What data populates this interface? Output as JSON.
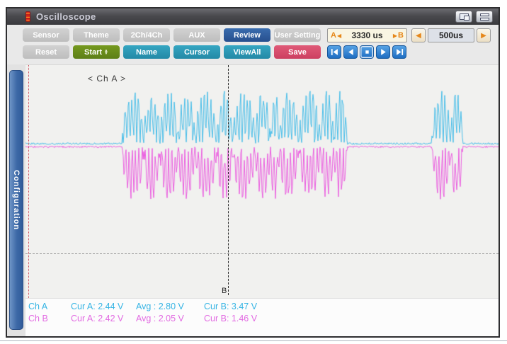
{
  "titlebar": {
    "title": "Oscilloscope"
  },
  "toolbar": {
    "row1": [
      {
        "label": "Sensor"
      },
      {
        "label": "Theme"
      },
      {
        "label": "2Ch/4Ch"
      },
      {
        "label": "AUX"
      },
      {
        "label": "Review"
      },
      {
        "label": "User Setting"
      }
    ],
    "row2": [
      {
        "label": "Reset"
      },
      {
        "label": "Start"
      },
      {
        "label": "Name"
      },
      {
        "label": "Cursor"
      },
      {
        "label": "ViewAll"
      },
      {
        "label": "Save"
      }
    ],
    "ab_panel": {
      "a_label": "A",
      "value": "3330 us",
      "b_label": "B"
    },
    "timebase": {
      "value": "500us"
    },
    "icons": {
      "arrow_left": "◀",
      "arrow_right": "▶",
      "spinner_up": "▲",
      "spinner_down": "▼"
    },
    "playback_icons": [
      "skip-start",
      "step-back",
      "stop",
      "play",
      "skip-end"
    ]
  },
  "sidebar": {
    "tab_label": "Configuration"
  },
  "plot": {
    "channel_label": "< Ch A >",
    "cursor_label": "B"
  },
  "status": {
    "rows": [
      {
        "ch": "Ch A",
        "cur_a": "Cur A: 2.44 V",
        "avg": "Avg : 2.80 V",
        "cur_b": "Cur B: 3.47 V",
        "color": "#35b4e4"
      },
      {
        "ch": "Ch B",
        "cur_a": "Cur A: 2.42 V",
        "avg": "Avg : 2.05 V",
        "cur_b": "Cur B: 1.46 V",
        "color": "#e26ae2"
      }
    ]
  },
  "chart_data": {
    "type": "line",
    "title": "Oscilloscope capture: two-channel mirrored AM burst waveform",
    "x_window_label": "3330 us",
    "timebase_per_div": "500us",
    "legend_position": "none",
    "grid": false,
    "series": [
      {
        "name": "Ch A",
        "color": "#3fbbe8",
        "polarity": -1,
        "cur_a_V": 2.44,
        "avg_V": 2.8,
        "cur_b_V": 3.47
      },
      {
        "name": "Ch B",
        "color": "#ea55de",
        "polarity": 1,
        "cur_a_V": 2.42,
        "avg_V": 2.05,
        "cur_b_V": 1.46
      }
    ],
    "waveform": {
      "center_frac": 0.344,
      "amplitude_frac": 0.238,
      "segments": [
        {
          "x0": 0.006,
          "x1": 0.204,
          "type": "flat"
        },
        {
          "x0": 0.204,
          "x1": 0.68,
          "type": "burst",
          "lobes": 13
        },
        {
          "x0": 0.68,
          "x1": 0.859,
          "type": "flat"
        },
        {
          "x0": 0.859,
          "x1": 0.924,
          "type": "burst",
          "lobes": 2
        },
        {
          "x0": 0.924,
          "x1": 1.0,
          "type": "flat"
        }
      ]
    },
    "cursors": {
      "a_x_frac": 0.006,
      "b_x_frac": 0.428,
      "baseline_y_frac": 0.81
    }
  }
}
